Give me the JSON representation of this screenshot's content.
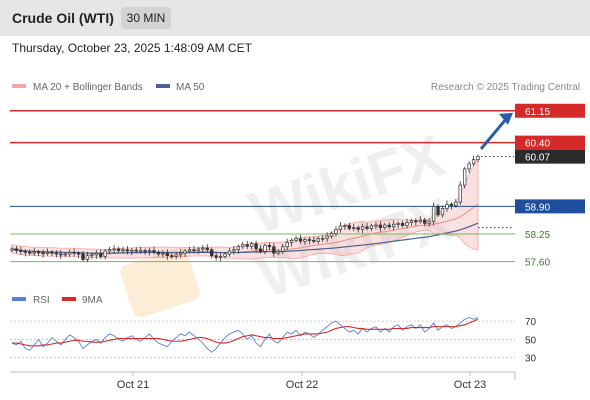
{
  "header": {
    "title": "Crude Oil (WTI)",
    "timeframe": "30 MIN",
    "datetime": "Thursday, October 23, 2025 1:48:09 AM CET"
  },
  "legend": {
    "ma_bollinger": "MA 20 + Bollinger Bands",
    "ma50": "MA 50",
    "source": "Research © 2025 Trading Central"
  },
  "colors": {
    "resistance": "#d42a2a",
    "support": "#1f4e9c",
    "target": "#7bb661",
    "bollinger": "#f2a6a6",
    "ma50": "#4a6290",
    "rsi": "#5b7fd6",
    "rsi_ma": "#d42a2a",
    "arrow": "#2a5caa"
  },
  "chart_data": [
    {
      "type": "line",
      "name": "price",
      "x_ticks": [
        "Oct 21",
        "Oct 22",
        "Oct 23"
      ],
      "ylim": [
        57.05,
        61.45
      ],
      "close": [
        57.9,
        57.86,
        57.84,
        57.82,
        57.8,
        57.83,
        57.81,
        57.79,
        57.82,
        57.8,
        57.78,
        57.76,
        57.78,
        57.82,
        57.8,
        57.78,
        57.65,
        57.74,
        57.76,
        57.8,
        57.72,
        57.85,
        57.88,
        57.9,
        57.86,
        57.88,
        57.85,
        57.87,
        57.85,
        57.86,
        57.84,
        57.86,
        57.82,
        57.78,
        57.8,
        57.74,
        57.72,
        57.76,
        57.8,
        57.85,
        57.88,
        57.86,
        57.9,
        57.92,
        57.88,
        57.74,
        57.7,
        57.72,
        57.78,
        57.85,
        57.88,
        57.95,
        58.0,
        57.96,
        58.02,
        57.9,
        57.84,
        57.98,
        57.95,
        57.8,
        57.84,
        57.95,
        58.05,
        58.1,
        58.14,
        58.08,
        58.12,
        58.1,
        58.08,
        58.14,
        58.15,
        58.2,
        58.26,
        58.36,
        58.44,
        58.45,
        58.38,
        58.4,
        58.36,
        58.42,
        58.38,
        58.44,
        58.46,
        58.4,
        58.46,
        58.42,
        58.48,
        58.5,
        58.45,
        58.52,
        58.56,
        58.54,
        58.58,
        58.5,
        58.55,
        58.9,
        58.7,
        58.85,
        58.95,
        58.92,
        59.0,
        59.4,
        59.78,
        59.9,
        60.0,
        60.07
      ],
      "levels": [
        {
          "price": 61.15,
          "label": "61.15",
          "kind": "resistance"
        },
        {
          "price": 60.4,
          "label": "60.40",
          "kind": "resistance"
        },
        {
          "price": 60.07,
          "label": "60.07",
          "kind": "last"
        },
        {
          "price": 58.9,
          "label": "58.90",
          "kind": "pivot"
        },
        {
          "price": 58.25,
          "label": "58.25",
          "kind": "target"
        },
        {
          "price": 57.6,
          "label": "57.60",
          "kind": "target"
        }
      ],
      "legend": [
        "MA 20 + Bollinger Bands",
        "MA 50"
      ]
    },
    {
      "type": "line",
      "name": "rsi",
      "ylim": [
        22,
        80
      ],
      "y_ticks": [
        "70",
        "50",
        "30"
      ],
      "series": [
        {
          "name": "RSI",
          "values": [
            46,
            44,
            48,
            40,
            38,
            44,
            50,
            42,
            46,
            52,
            48,
            44,
            50,
            55,
            52,
            48,
            40,
            44,
            48,
            50,
            46,
            52,
            56,
            54,
            50,
            48,
            52,
            54,
            50,
            48,
            52,
            56,
            50,
            46,
            44,
            42,
            48,
            52,
            56,
            54,
            58,
            54,
            50,
            46,
            40,
            36,
            40,
            46,
            52,
            56,
            58,
            60,
            56,
            50,
            54,
            46,
            42,
            50,
            56,
            48,
            46,
            52,
            58,
            56,
            60,
            54,
            58,
            56,
            52,
            56,
            60,
            64,
            68,
            70,
            66,
            62,
            58,
            60,
            56,
            62,
            58,
            62,
            64,
            58,
            62,
            58,
            64,
            66,
            60,
            64,
            66,
            62,
            66,
            58,
            62,
            68,
            60,
            64,
            66,
            62,
            64,
            68,
            72,
            74,
            72,
            74
          ]
        },
        {
          "name": "9MA",
          "values": [
            46,
            46,
            45,
            44,
            43,
            43,
            43,
            44,
            44,
            45,
            46,
            46,
            47,
            48,
            49,
            49,
            48,
            48,
            47,
            47,
            47,
            48,
            49,
            50,
            51,
            51,
            51,
            51,
            51,
            51,
            51,
            51,
            51,
            51,
            50,
            49,
            48,
            48,
            48,
            49,
            50,
            51,
            52,
            52,
            51,
            49,
            47,
            46,
            46,
            47,
            49,
            51,
            53,
            54,
            55,
            54,
            53,
            52,
            52,
            51,
            51,
            51,
            52,
            53,
            54,
            55,
            56,
            56,
            56,
            56,
            57,
            58,
            60,
            62,
            63,
            64,
            64,
            63,
            62,
            62,
            61,
            61,
            61,
            61,
            61,
            61,
            62,
            62,
            62,
            62,
            63,
            63,
            63,
            63,
            63,
            64,
            64,
            64,
            64,
            64,
            64,
            65,
            66,
            68,
            70,
            72
          ]
        }
      ],
      "legend": [
        "RSI",
        "9MA"
      ]
    }
  ]
}
